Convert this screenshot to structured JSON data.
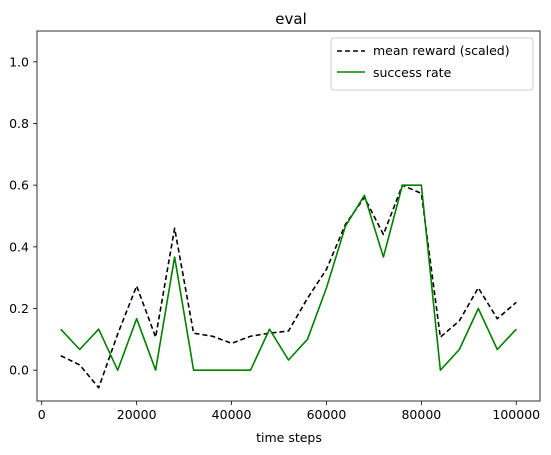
{
  "chart_data": {
    "type": "line",
    "title": "eval",
    "xlabel": "time steps",
    "ylabel": "",
    "xlim": [
      -1000,
      105000
    ],
    "ylim": [
      -0.1,
      1.1
    ],
    "xticks": [
      0,
      20000,
      40000,
      60000,
      80000,
      100000
    ],
    "yticks": [
      0.0,
      0.2,
      0.4,
      0.6,
      0.8,
      1.0
    ],
    "xtick_labels": [
      "0",
      "20000",
      "40000",
      "60000",
      "80000",
      "100000"
    ],
    "ytick_labels": [
      "0.0",
      "0.2",
      "0.4",
      "0.6",
      "0.8",
      "1.0"
    ],
    "grid": false,
    "legend_position": "top-right",
    "x": [
      4000,
      8000,
      12000,
      16000,
      20000,
      24000,
      28000,
      32000,
      36000,
      40000,
      44000,
      48000,
      52000,
      56000,
      60000,
      64000,
      68000,
      72000,
      76000,
      80000,
      84000,
      88000,
      92000,
      96000,
      100000
    ],
    "series": [
      {
        "name": "mean reward (scaled)",
        "color": "#000000",
        "style": "dashed",
        "values": [
          0.047,
          0.017,
          -0.057,
          0.117,
          0.273,
          0.107,
          0.46,
          0.12,
          0.11,
          0.087,
          0.11,
          0.12,
          0.127,
          0.233,
          0.327,
          0.473,
          0.56,
          0.44,
          0.6,
          0.573,
          0.107,
          0.16,
          0.267,
          0.167,
          0.22
        ]
      },
      {
        "name": "success rate",
        "color": "#008000",
        "style": "solid",
        "values": [
          0.133,
          0.067,
          0.133,
          0.0,
          0.167,
          0.0,
          0.367,
          0.0,
          0.0,
          0.0,
          0.0,
          0.133,
          0.033,
          0.1,
          0.267,
          0.467,
          0.567,
          0.367,
          0.6,
          0.6,
          0.0,
          0.067,
          0.2,
          0.067,
          0.133
        ]
      }
    ]
  }
}
